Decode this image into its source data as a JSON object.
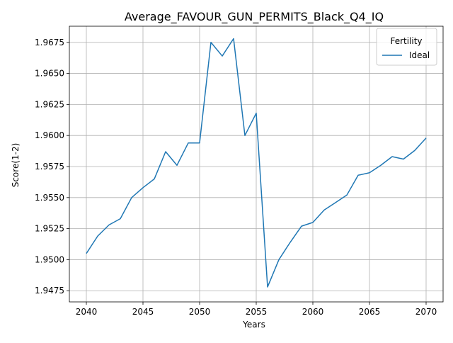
{
  "chart_data": {
    "type": "line",
    "title": "Average_FAVOUR_GUN_PERMITS_Black_Q4_IQ",
    "xlabel": "Years",
    "ylabel": "Score(1-2)",
    "xlim": [
      2038.5,
      2071.5
    ],
    "ylim": [
      1.9466,
      1.9688
    ],
    "grid": true,
    "legend": {
      "title": "Fertility",
      "placement": "top-right"
    },
    "xticks": [
      {
        "value": 2040,
        "label": "2040"
      },
      {
        "value": 2045,
        "label": "2045"
      },
      {
        "value": 2050,
        "label": "2050"
      },
      {
        "value": 2055,
        "label": "2055"
      },
      {
        "value": 2060,
        "label": "2060"
      },
      {
        "value": 2065,
        "label": "2065"
      },
      {
        "value": 2070,
        "label": "2070"
      }
    ],
    "yticks": [
      {
        "value": 1.9475,
        "label": "1.9475"
      },
      {
        "value": 1.95,
        "label": "1.9500"
      },
      {
        "value": 1.9525,
        "label": "1.9525"
      },
      {
        "value": 1.955,
        "label": "1.9550"
      },
      {
        "value": 1.9575,
        "label": "1.9575"
      },
      {
        "value": 1.96,
        "label": "1.9600"
      },
      {
        "value": 1.9625,
        "label": "1.9625"
      },
      {
        "value": 1.965,
        "label": "1.9650"
      },
      {
        "value": 1.9675,
        "label": "1.9675"
      }
    ],
    "series": [
      {
        "name": "Ideal",
        "color": "#1f77b4",
        "x": [
          2040,
          2041,
          2042,
          2043,
          2044,
          2045,
          2046,
          2047,
          2048,
          2049,
          2050,
          2051,
          2052,
          2053,
          2054,
          2055,
          2056,
          2057,
          2058,
          2059,
          2060,
          2061,
          2062,
          2063,
          2064,
          2065,
          2066,
          2067,
          2068,
          2069,
          2070
        ],
        "y": [
          1.9505,
          1.9519,
          1.9528,
          1.9533,
          1.955,
          1.9558,
          1.9565,
          1.9587,
          1.9576,
          1.9594,
          1.9594,
          1.9675,
          1.9664,
          1.9678,
          1.96,
          1.9618,
          1.9478,
          1.95,
          1.9514,
          1.9527,
          1.953,
          1.954,
          1.9546,
          1.9552,
          1.9568,
          1.957,
          1.9576,
          1.9583,
          1.9581,
          1.9588,
          1.9598
        ]
      }
    ]
  }
}
